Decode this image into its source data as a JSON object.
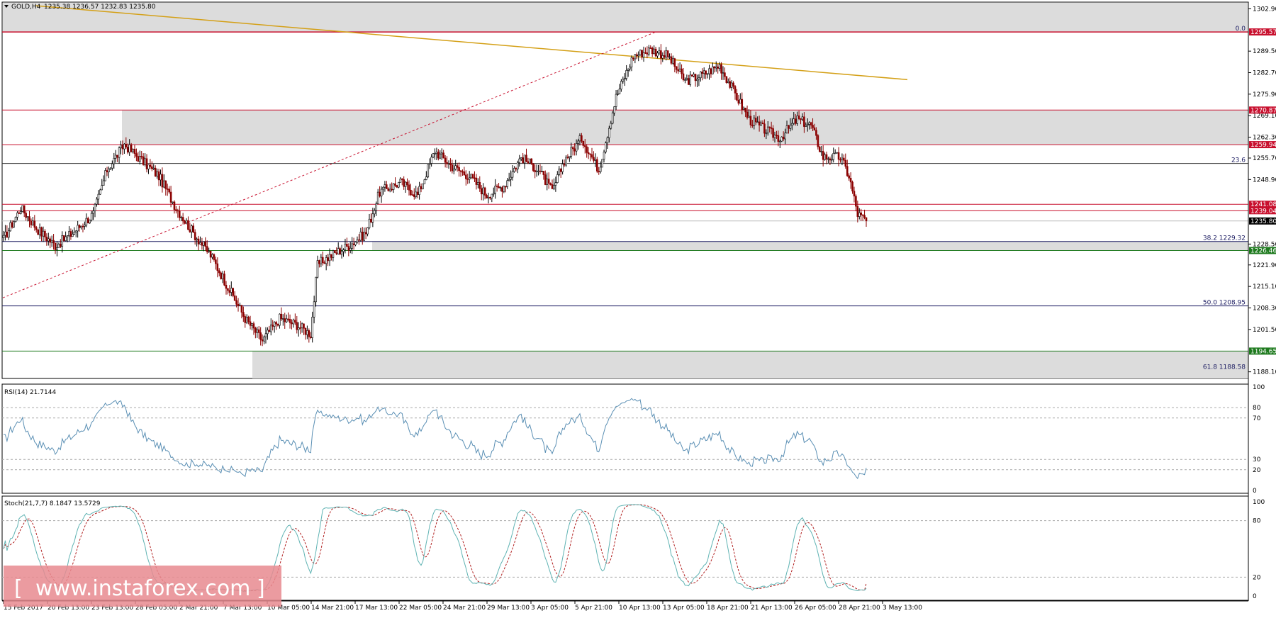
{
  "header": {
    "symbol": "GOLD,H4",
    "ohlc": "1235.38 1236.57 1232.83 1235.80"
  },
  "price_axis_labels": [
    "1302.90",
    "1289.50",
    "1282.70",
    "1275.90",
    "1269.10",
    "1262.30",
    "1255.70",
    "1248.90",
    "1228.50",
    "1221.90",
    "1215.10",
    "1208.30",
    "1201.50",
    "1188.10"
  ],
  "price_tags": [
    {
      "label": "1295.57",
      "value": 1295.57,
      "color": "#c8102e"
    },
    {
      "label": "1270.87",
      "value": 1270.87,
      "color": "#c8102e"
    },
    {
      "label": "1259.94",
      "value": 1259.94,
      "color": "#c8102e"
    },
    {
      "label": "1241.08",
      "value": 1241.08,
      "color": "#c8102e"
    },
    {
      "label": "1239.04",
      "value": 1239.04,
      "color": "#c8102e"
    },
    {
      "label": "1235.80",
      "value": 1235.8,
      "color": "#000000"
    },
    {
      "label": "1226.46",
      "value": 1226.46,
      "color": "#1e7a1e"
    },
    {
      "label": "1194.65",
      "value": 1194.65,
      "color": "#1e7a1e"
    }
  ],
  "fib_levels": [
    {
      "label": "0.0",
      "value": 1295.57
    },
    {
      "label": "23.6",
      "value": 1254.0
    },
    {
      "label": "38.2 1229.32",
      "value": 1229.32
    },
    {
      "label": "50.0 1208.95",
      "value": 1208.95
    },
    {
      "label": "61.8 1188.58",
      "value": 1188.58
    }
  ],
  "time_labels": [
    "15 Feb 2017",
    "20 Feb 13:00",
    "23 Feb 13:00",
    "28 Feb 05:00",
    "2 Mar 21:00",
    "7 Mar 13:00",
    "10 Mar 05:00",
    "14 Mar 21:00",
    "17 Mar 13:00",
    "22 Mar 05:00",
    "24 Mar 21:00",
    "29 Mar 13:00",
    "3 Apr 05:00",
    "5 Apr 21:00",
    "10 Apr 13:00",
    "13 Apr 05:00",
    "18 Apr 21:00",
    "21 Apr 13:00",
    "26 Apr 05:00",
    "28 Apr 21:00",
    "3 May 13:00"
  ],
  "rsi": {
    "title": "RSI(14) 21.7144",
    "axis_labels": [
      "100",
      "80",
      "70",
      "30",
      "20",
      "0"
    ]
  },
  "stoch": {
    "title": "Stoch(21,7,7) 8.1847 13.5729",
    "axis_labels": [
      "100",
      "80",
      "20",
      "0"
    ]
  },
  "watermark": {
    "text": "www.instaforex.com",
    "bracket_left": "[",
    "bracket_right": "]"
  },
  "colors": {
    "bull": "#000000",
    "bear": "#8b0000",
    "rsi_line": "#5a8fb4",
    "stoch_main": "#5fb3b3",
    "stoch_signal": "#b22222",
    "resistance": "#c8102e",
    "support": "#1e7a1e",
    "fib": "#1a1a60",
    "trendline": "#d4a017",
    "watermark_bg": "#e88a8f"
  },
  "chart_data": {
    "type": "candlestick",
    "instrument": "GOLD",
    "timeframe": "H4",
    "y_range": [
      1186,
      1305
    ],
    "keypoints": [
      {
        "i": 0,
        "price": 1230
      },
      {
        "i": 10,
        "price": 1240
      },
      {
        "i": 20,
        "price": 1233
      },
      {
        "i": 30,
        "price": 1228
      },
      {
        "i": 40,
        "price": 1232
      },
      {
        "i": 52,
        "price": 1238
      },
      {
        "i": 60,
        "price": 1252
      },
      {
        "i": 70,
        "price": 1260
      },
      {
        "i": 80,
        "price": 1255
      },
      {
        "i": 90,
        "price": 1250
      },
      {
        "i": 100,
        "price": 1240
      },
      {
        "i": 110,
        "price": 1232
      },
      {
        "i": 120,
        "price": 1225
      },
      {
        "i": 130,
        "price": 1215
      },
      {
        "i": 140,
        "price": 1205
      },
      {
        "i": 150,
        "price": 1198
      },
      {
        "i": 160,
        "price": 1205
      },
      {
        "i": 170,
        "price": 1203
      },
      {
        "i": 178,
        "price": 1200
      },
      {
        "i": 182,
        "price": 1222
      },
      {
        "i": 190,
        "price": 1225
      },
      {
        "i": 200,
        "price": 1228
      },
      {
        "i": 210,
        "price": 1232
      },
      {
        "i": 218,
        "price": 1245
      },
      {
        "i": 230,
        "price": 1248
      },
      {
        "i": 240,
        "price": 1244
      },
      {
        "i": 250,
        "price": 1258
      },
      {
        "i": 260,
        "price": 1253
      },
      {
        "i": 270,
        "price": 1250
      },
      {
        "i": 280,
        "price": 1244
      },
      {
        "i": 290,
        "price": 1247
      },
      {
        "i": 300,
        "price": 1256
      },
      {
        "i": 310,
        "price": 1252
      },
      {
        "i": 318,
        "price": 1245
      },
      {
        "i": 325,
        "price": 1255
      },
      {
        "i": 335,
        "price": 1262
      },
      {
        "i": 345,
        "price": 1252
      },
      {
        "i": 355,
        "price": 1275
      },
      {
        "i": 365,
        "price": 1288
      },
      {
        "i": 375,
        "price": 1290
      },
      {
        "i": 385,
        "price": 1288
      },
      {
        "i": 395,
        "price": 1280
      },
      {
        "i": 405,
        "price": 1282
      },
      {
        "i": 415,
        "price": 1285
      },
      {
        "i": 425,
        "price": 1275
      },
      {
        "i": 432,
        "price": 1268
      },
      {
        "i": 440,
        "price": 1265
      },
      {
        "i": 450,
        "price": 1262
      },
      {
        "i": 460,
        "price": 1268
      },
      {
        "i": 468,
        "price": 1266
      },
      {
        "i": 475,
        "price": 1256
      },
      {
        "i": 485,
        "price": 1256
      },
      {
        "i": 490,
        "price": 1250
      },
      {
        "i": 495,
        "price": 1238
      },
      {
        "i": 500,
        "price": 1235.8
      }
    ],
    "rsi_last": 21.7144,
    "stoch_main_last": 8.1847,
    "stoch_signal_last": 13.5729
  }
}
